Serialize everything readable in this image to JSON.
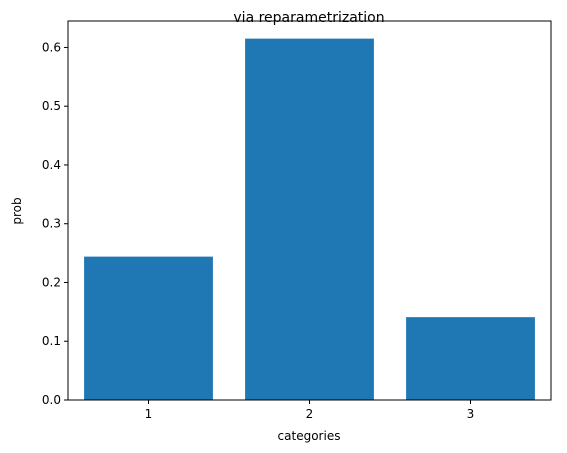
{
  "chart_data": {
    "type": "bar",
    "title": "via reparametrization",
    "xlabel": "categories",
    "ylabel": "prob",
    "categories": [
      "1",
      "2",
      "3"
    ],
    "x": [
      1,
      2,
      3
    ],
    "values": [
      0.244,
      0.615,
      0.141
    ],
    "xlim": [
      0.5,
      3.5
    ],
    "ylim": [
      0,
      0.645
    ],
    "yticks": [
      0.0,
      0.1,
      0.2,
      0.3,
      0.4,
      0.5,
      0.6
    ],
    "ytick_labels": [
      "0.0",
      "0.1",
      "0.2",
      "0.3",
      "0.4",
      "0.5",
      "0.6"
    ],
    "bar_width": 0.8,
    "bar_color": "#1f77b4",
    "grid": false,
    "legend": "none"
  }
}
